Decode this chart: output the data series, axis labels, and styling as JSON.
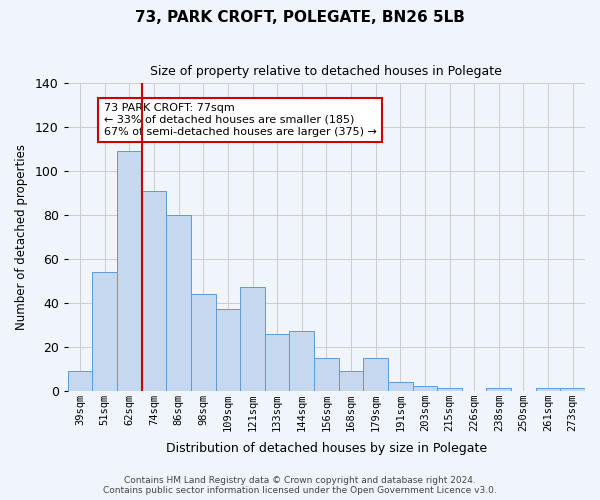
{
  "title": "73, PARK CROFT, POLEGATE, BN26 5LB",
  "subtitle": "Size of property relative to detached houses in Polegate",
  "xlabel": "Distribution of detached houses by size in Polegate",
  "ylabel": "Number of detached properties",
  "categories": [
    "39sqm",
    "51sqm",
    "62sqm",
    "74sqm",
    "86sqm",
    "98sqm",
    "109sqm",
    "121sqm",
    "133sqm",
    "144sqm",
    "156sqm",
    "168sqm",
    "179sqm",
    "191sqm",
    "203sqm",
    "215sqm",
    "226sqm",
    "238sqm",
    "250sqm",
    "261sqm",
    "273sqm"
  ],
  "values": [
    9,
    54,
    109,
    91,
    80,
    44,
    37,
    47,
    26,
    27,
    15,
    9,
    15,
    4,
    2,
    1,
    0,
    1,
    0,
    1,
    1
  ],
  "ylim": [
    0,
    140
  ],
  "yticks": [
    0,
    20,
    40,
    60,
    80,
    100,
    120,
    140
  ],
  "bar_color": "#c5d8f0",
  "bar_edge_color": "#5b9bd5",
  "vline_index": 3,
  "vline_color": "#cc0000",
  "annotation_text": "73 PARK CROFT: 77sqm\n← 33% of detached houses are smaller (185)\n67% of semi-detached houses are larger (375) →",
  "annotation_box_color": "#ffffff",
  "annotation_box_edge": "#cc0000",
  "footer_text": "Contains HM Land Registry data © Crown copyright and database right 2024.\nContains public sector information licensed under the Open Government Licence v3.0.",
  "background_color": "#f0f5fc"
}
